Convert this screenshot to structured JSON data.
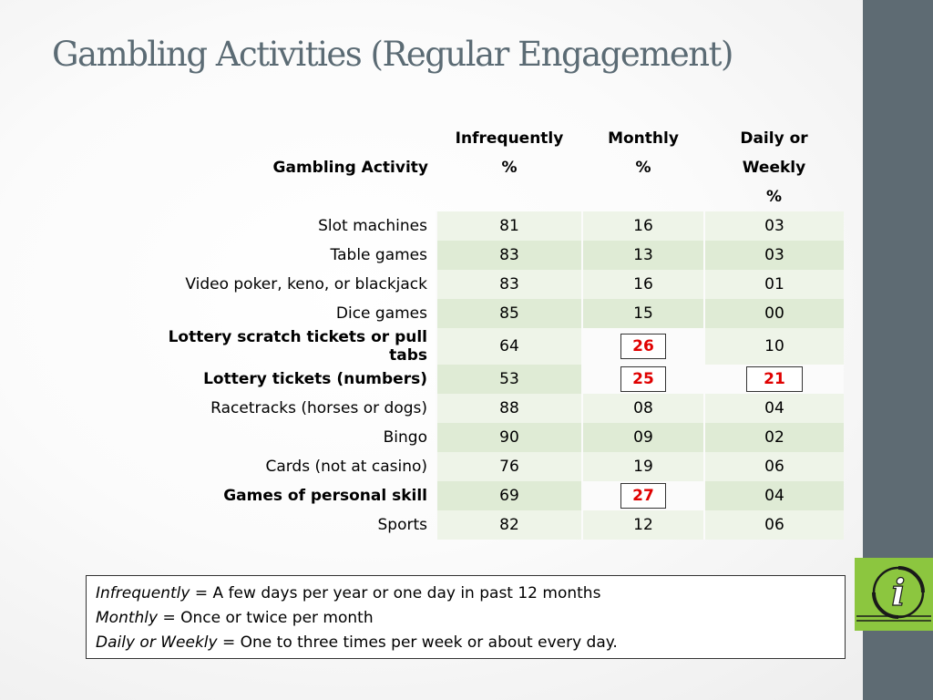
{
  "title": "Gambling Activities (Regular Engagement)",
  "table": {
    "headers": {
      "activity": "Gambling Activity",
      "infrequently_line1": "Infrequently",
      "infrequently_line2": "%",
      "monthly_line1": "Monthly",
      "monthly_line2": "%",
      "daily_line1": "Daily or",
      "daily_line2": "Weekly",
      "daily_line3": "%"
    },
    "rows": [
      {
        "activity": "Slot machines",
        "infrequently": "81",
        "monthly": "16",
        "daily": "03",
        "bold": false
      },
      {
        "activity": "Table games",
        "infrequently": "83",
        "monthly": "13",
        "daily": "03",
        "bold": false
      },
      {
        "activity": "Video poker, keno, or blackjack",
        "infrequently": "83",
        "monthly": "16",
        "daily": "01",
        "bold": false
      },
      {
        "activity": "Dice games",
        "infrequently": "85",
        "monthly": "15",
        "daily": "00",
        "bold": false
      },
      {
        "activity": "Lottery scratch tickets or pull tabs",
        "infrequently": "64",
        "monthly": "26",
        "daily": "10",
        "bold": true
      },
      {
        "activity": "Lottery tickets (numbers)",
        "infrequently": "53",
        "monthly": "25",
        "daily": "21",
        "bold": true
      },
      {
        "activity": "Racetracks (horses or dogs)",
        "infrequently": "88",
        "monthly": "08",
        "daily": "04",
        "bold": false
      },
      {
        "activity": "Bingo",
        "infrequently": "90",
        "monthly": "09",
        "daily": "02",
        "bold": false
      },
      {
        "activity": "Cards (not at casino)",
        "infrequently": "76",
        "monthly": "19",
        "daily": "06",
        "bold": false
      },
      {
        "activity": "Games of personal skill",
        "infrequently": "69",
        "monthly": "27",
        "daily": "04",
        "bold": true
      },
      {
        "activity": "Sports",
        "infrequently": "82",
        "monthly": "12",
        "daily": "06",
        "bold": false
      }
    ]
  },
  "legend": {
    "infrequently_term": "Infrequently",
    "infrequently_def": " = A few days per year or one day in past 12 months",
    "monthly_term": "Monthly",
    "monthly_def": " = Once or twice per month",
    "daily_term": "Daily or Weekly",
    "daily_def": " = One to three times per week or about every day."
  },
  "colors": {
    "title": "#5b6b74",
    "sidebar": "#5e6b73",
    "info_icon_bg": "#8cc63f",
    "highlight_text": "#e00000",
    "row_light": "#eef4e8",
    "row_dark": "#dfebd5"
  },
  "icons": [
    "info-icon"
  ]
}
